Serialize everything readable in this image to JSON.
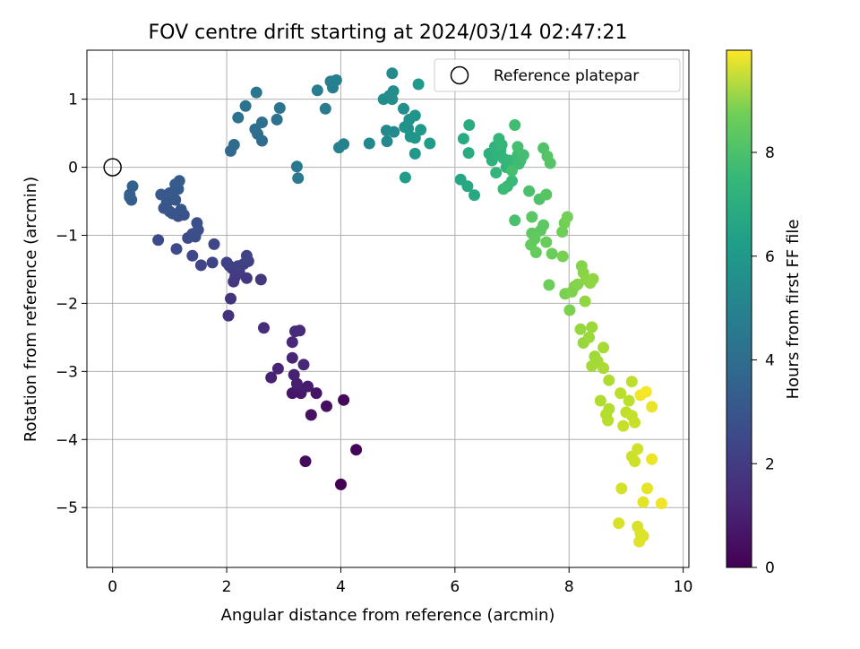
{
  "chart_data": {
    "type": "scatter",
    "title": "FOV centre drift starting at 2024/03/14 02:47:21",
    "xlabel": "Angular distance from reference (arcmin)",
    "ylabel": "Rotation from reference (arcmin)",
    "xlim": [
      -0.45,
      10.1
    ],
    "ylim": [
      -5.88,
      1.72
    ],
    "xticks": [
      0,
      2,
      4,
      6,
      8,
      10
    ],
    "xtick_labels": [
      "0",
      "2",
      "4",
      "6",
      "8",
      "10"
    ],
    "yticks": [
      1,
      0,
      -1,
      -2,
      -3,
      -4,
      -5
    ],
    "ytick_labels": [
      "1",
      "0",
      "−1",
      "−2",
      "−3",
      "−4",
      "−5"
    ],
    "grid": true,
    "legend": {
      "placement": "upper-right",
      "entries": [
        "Reference platepar"
      ]
    },
    "reference_point": {
      "x": 0,
      "y": 0,
      "label": "Reference platepar"
    },
    "colorbar": {
      "label": "Hours from first FF file",
      "colormap": "viridis",
      "range": [
        0,
        9.97
      ],
      "ticks": [
        0,
        2,
        4,
        6,
        8
      ],
      "tick_labels": [
        "0",
        "2",
        "4",
        "6",
        "8"
      ]
    },
    "points": [
      [
        4.0,
        -4.66,
        0.03
      ],
      [
        4.27,
        -4.15,
        0.12
      ],
      [
        4.05,
        -3.42,
        0.22
      ],
      [
        3.38,
        -4.32,
        0.3
      ],
      [
        3.75,
        -3.51,
        0.38
      ],
      [
        3.48,
        -3.64,
        0.45
      ],
      [
        3.57,
        -3.32,
        0.52
      ],
      [
        3.15,
        -3.32,
        0.6
      ],
      [
        3.3,
        -3.32,
        0.66
      ],
      [
        3.25,
        -3.25,
        0.72
      ],
      [
        3.42,
        -3.22,
        0.78
      ],
      [
        3.23,
        -3.18,
        0.84
      ],
      [
        3.18,
        -3.05,
        0.9
      ],
      [
        2.78,
        -3.09,
        0.95
      ],
      [
        2.9,
        -2.96,
        1.0
      ],
      [
        3.15,
        -2.8,
        1.05
      ],
      [
        3.35,
        -2.9,
        1.1
      ],
      [
        3.15,
        -2.57,
        1.15
      ],
      [
        3.2,
        -2.41,
        1.2
      ],
      [
        3.28,
        -2.4,
        1.25
      ],
      [
        2.65,
        -2.36,
        1.32
      ],
      [
        2.03,
        -2.18,
        1.42
      ],
      [
        2.07,
        -1.93,
        1.5
      ],
      [
        2.12,
        -1.68,
        1.58
      ],
      [
        2.35,
        -1.63,
        1.62
      ],
      [
        2.6,
        -1.65,
        1.66
      ],
      [
        2.15,
        -1.61,
        1.7
      ],
      [
        2.22,
        -1.53,
        1.75
      ],
      [
        2.1,
        -1.49,
        1.8
      ],
      [
        2.05,
        -1.45,
        1.84
      ],
      [
        2.3,
        -1.42,
        1.88
      ],
      [
        2.38,
        -1.38,
        1.92
      ],
      [
        2.2,
        -1.45,
        1.95
      ],
      [
        2.0,
        -1.4,
        1.98
      ],
      [
        2.35,
        -1.3,
        2.02
      ],
      [
        1.75,
        -1.4,
        2.06
      ],
      [
        1.55,
        -1.44,
        2.1
      ],
      [
        1.78,
        -1.13,
        2.14
      ],
      [
        1.4,
        -1.3,
        2.18
      ],
      [
        1.12,
        -1.2,
        2.22
      ],
      [
        0.8,
        -1.07,
        2.26
      ],
      [
        1.32,
        -1.04,
        2.3
      ],
      [
        1.45,
        -1.02,
        2.34
      ],
      [
        1.4,
        -0.98,
        2.38
      ],
      [
        1.5,
        -0.92,
        2.42
      ],
      [
        1.48,
        -0.82,
        2.46
      ],
      [
        1.15,
        -0.72,
        2.5
      ],
      [
        1.25,
        -0.7,
        2.53
      ],
      [
        1.05,
        -0.68,
        2.56
      ],
      [
        1.0,
        -0.65,
        2.59
      ],
      [
        1.2,
        -0.62,
        2.62
      ],
      [
        0.9,
        -0.6,
        2.65
      ],
      [
        0.95,
        -0.52,
        2.68
      ],
      [
        1.1,
        -0.48,
        2.71
      ],
      [
        1.05,
        -0.42,
        2.74
      ],
      [
        0.85,
        -0.4,
        2.77
      ],
      [
        1.0,
        -0.38,
        2.8
      ],
      [
        1.15,
        -0.32,
        2.83
      ],
      [
        1.1,
        -0.25,
        2.86
      ],
      [
        1.17,
        -0.2,
        2.89
      ],
      [
        0.3,
        -0.44,
        2.94
      ],
      [
        0.33,
        -0.48,
        2.97
      ],
      [
        0.3,
        -0.4,
        3.0
      ],
      [
        0.35,
        -0.28,
        3.03
      ],
      [
        2.07,
        0.24,
        3.4
      ],
      [
        2.13,
        0.33,
        3.45
      ],
      [
        2.62,
        0.39,
        3.5
      ],
      [
        2.54,
        0.49,
        3.55
      ],
      [
        2.5,
        0.56,
        3.6
      ],
      [
        2.62,
        0.66,
        3.65
      ],
      [
        2.88,
        0.7,
        3.7
      ],
      [
        2.2,
        0.73,
        3.75
      ],
      [
        2.93,
        0.87,
        3.8
      ],
      [
        2.33,
        0.9,
        3.85
      ],
      [
        2.52,
        1.1,
        3.9
      ],
      [
        3.23,
        0.01,
        4.0
      ],
      [
        3.25,
        -0.16,
        4.05
      ],
      [
        3.73,
        0.86,
        4.15
      ],
      [
        3.59,
        1.13,
        4.2
      ],
      [
        3.82,
        1.26,
        4.25
      ],
      [
        3.86,
        1.17,
        4.3
      ],
      [
        3.92,
        1.28,
        4.35
      ],
      [
        4.05,
        0.34,
        4.4
      ],
      [
        3.97,
        0.29,
        4.45
      ],
      [
        4.5,
        0.35,
        4.6
      ],
      [
        4.81,
        0.38,
        4.7
      ],
      [
        4.8,
        0.54,
        4.72
      ],
      [
        4.93,
        0.52,
        4.75
      ],
      [
        4.9,
        1.38,
        4.8
      ],
      [
        4.85,
        1.05,
        4.82
      ],
      [
        4.92,
        1.12,
        4.85
      ],
      [
        4.75,
        1.0,
        4.88
      ],
      [
        4.9,
        1.0,
        4.9
      ],
      [
        5.1,
        0.86,
        4.95
      ],
      [
        5.12,
        0.59,
        5.0
      ],
      [
        5.2,
        0.7,
        5.05
      ],
      [
        5.18,
        0.57,
        5.1
      ],
      [
        5.3,
        0.76,
        5.15
      ],
      [
        5.22,
        0.45,
        5.2
      ],
      [
        5.3,
        0.43,
        5.25
      ],
      [
        5.3,
        0.2,
        5.3
      ],
      [
        5.4,
        0.55,
        5.35
      ],
      [
        5.36,
        1.22,
        5.4
      ],
      [
        5.13,
        -0.15,
        5.45
      ],
      [
        5.56,
        0.35,
        5.5
      ],
      [
        6.1,
        -0.18,
        5.9
      ],
      [
        6.22,
        -0.28,
        5.95
      ],
      [
        6.34,
        -0.41,
        6.0
      ],
      [
        6.15,
        0.42,
        6.05
      ],
      [
        6.24,
        0.21,
        6.1
      ],
      [
        6.25,
        0.62,
        6.15
      ],
      [
        6.6,
        0.2,
        6.3
      ],
      [
        6.65,
        0.1,
        6.35
      ],
      [
        6.7,
        0.3,
        6.4
      ],
      [
        6.75,
        0.18,
        6.45
      ],
      [
        6.8,
        0.25,
        6.48
      ],
      [
        6.72,
        -0.08,
        6.5
      ],
      [
        6.85,
        0.13,
        6.53
      ],
      [
        6.9,
        0.0,
        6.56
      ],
      [
        6.77,
        0.42,
        6.6
      ],
      [
        6.82,
        0.33,
        6.63
      ],
      [
        6.95,
        0.1,
        6.66
      ],
      [
        6.92,
        -0.28,
        6.7
      ],
      [
        7.0,
        -0.2,
        6.73
      ],
      [
        6.85,
        -0.32,
        6.76
      ],
      [
        7.1,
        0.18,
        6.8
      ],
      [
        7.12,
        0.05,
        6.83
      ],
      [
        7.15,
        0.1,
        6.86
      ],
      [
        7.05,
        0.62,
        6.9
      ],
      [
        7.2,
        0.18,
        6.93
      ],
      [
        7.1,
        0.3,
        6.96
      ],
      [
        7.0,
        -0.05,
        7.0
      ],
      [
        7.05,
        -0.78,
        7.05
      ],
      [
        7.3,
        -0.35,
        7.1
      ],
      [
        7.48,
        -0.47,
        7.15
      ],
      [
        7.55,
        0.28,
        7.2
      ],
      [
        7.62,
        0.16,
        7.25
      ],
      [
        7.67,
        0.06,
        7.28
      ],
      [
        7.6,
        -0.4,
        7.32
      ],
      [
        7.35,
        -0.73,
        7.36
      ],
      [
        7.55,
        -0.85,
        7.4
      ],
      [
        7.5,
        -0.93,
        7.44
      ],
      [
        7.35,
        -0.97,
        7.48
      ],
      [
        7.4,
        -1.05,
        7.52
      ],
      [
        7.33,
        -1.14,
        7.56
      ],
      [
        7.42,
        -1.25,
        7.6
      ],
      [
        7.6,
        -1.1,
        7.64
      ],
      [
        7.7,
        -1.27,
        7.68
      ],
      [
        7.65,
        -1.73,
        7.72
      ],
      [
        7.88,
        -0.95,
        7.76
      ],
      [
        7.92,
        -0.82,
        7.8
      ],
      [
        7.97,
        -0.73,
        7.84
      ],
      [
        7.89,
        -1.31,
        7.88
      ],
      [
        7.93,
        -1.86,
        7.92
      ],
      [
        8.01,
        -2.1,
        7.96
      ],
      [
        8.05,
        -1.83,
        8.0
      ],
      [
        8.1,
        -1.75,
        8.04
      ],
      [
        8.15,
        -1.72,
        8.08
      ],
      [
        8.22,
        -1.45,
        8.12
      ],
      [
        8.25,
        -1.55,
        8.16
      ],
      [
        8.3,
        -1.65,
        8.2
      ],
      [
        8.37,
        -1.7,
        8.24
      ],
      [
        8.42,
        -1.64,
        8.28
      ],
      [
        8.28,
        -1.97,
        8.32
      ],
      [
        8.2,
        -2.38,
        8.36
      ],
      [
        8.25,
        -2.58,
        8.4
      ],
      [
        8.35,
        -2.5,
        8.44
      ],
      [
        8.4,
        -2.35,
        8.48
      ],
      [
        8.45,
        -2.78,
        8.52
      ],
      [
        8.5,
        -2.85,
        8.56
      ],
      [
        8.4,
        -2.92,
        8.6
      ],
      [
        8.6,
        -2.65,
        8.64
      ],
      [
        8.6,
        -2.95,
        8.68
      ],
      [
        8.7,
        -3.13,
        8.72
      ],
      [
        8.55,
        -3.43,
        8.76
      ],
      [
        8.7,
        -3.55,
        8.8
      ],
      [
        8.65,
        -3.63,
        8.84
      ],
      [
        8.68,
        -3.72,
        8.88
      ],
      [
        8.9,
        -3.32,
        8.92
      ],
      [
        9.05,
        -3.43,
        8.96
      ],
      [
        9.1,
        -3.15,
        9.0
      ],
      [
        9.0,
        -3.6,
        9.04
      ],
      [
        9.1,
        -3.65,
        9.08
      ],
      [
        8.95,
        -3.8,
        9.12
      ],
      [
        9.15,
        -3.75,
        9.16
      ],
      [
        9.1,
        -4.25,
        9.2
      ],
      [
        9.15,
        -4.32,
        9.24
      ],
      [
        9.2,
        -4.14,
        9.28
      ],
      [
        8.92,
        -4.72,
        9.32
      ],
      [
        8.87,
        -5.23,
        9.36
      ],
      [
        9.2,
        -5.28,
        9.4
      ],
      [
        9.25,
        -5.38,
        9.44
      ],
      [
        9.3,
        -5.42,
        9.48
      ],
      [
        9.23,
        -5.5,
        9.52
      ],
      [
        9.3,
        -4.92,
        9.56
      ],
      [
        9.37,
        -4.72,
        9.6
      ],
      [
        9.45,
        -3.52,
        9.65
      ],
      [
        9.45,
        -4.29,
        9.7
      ],
      [
        9.62,
        -4.94,
        9.75
      ],
      [
        9.25,
        -3.35,
        9.8
      ],
      [
        9.35,
        -3.3,
        9.85
      ]
    ]
  }
}
